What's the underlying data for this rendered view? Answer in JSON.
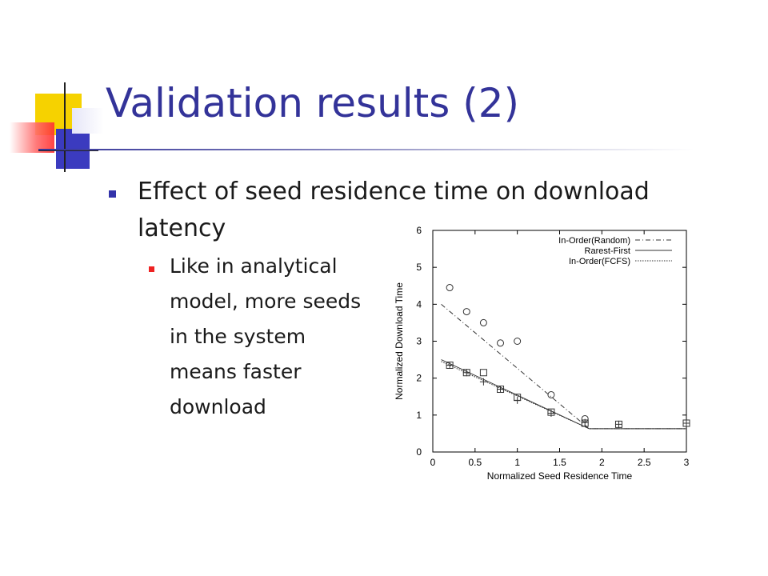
{
  "slide": {
    "title": "Validation results (2)",
    "bullet1": [
      "Effect of seed residence time on download",
      "latency"
    ],
    "sub_bullet": [
      "Like in analytical",
      "model, more seeds",
      "in the system",
      "means faster",
      "download"
    ]
  },
  "colors": {
    "title": "#333399",
    "bullet": "#3333aa",
    "sub_bullet": "#ee2222"
  },
  "chart_data": {
    "type": "line",
    "title": "",
    "xlabel": "Normalized Seed Residence Time",
    "ylabel": "Normalized Download Time",
    "xlim": [
      0,
      3
    ],
    "ylim": [
      0,
      6
    ],
    "xticks": [
      "0",
      "0.5",
      "1",
      "1.5",
      "2",
      "2.5",
      "3"
    ],
    "yticks": [
      "0",
      "1",
      "2",
      "3",
      "4",
      "5",
      "6"
    ],
    "legend_position": "top-right",
    "grid": false,
    "series": [
      {
        "name": "In-Order(Random)",
        "style": "dash-dot",
        "marker": "circle",
        "line": [
          [
            0.1,
            4.0
          ],
          [
            1.85,
            0.63
          ],
          [
            3.0,
            0.63
          ]
        ],
        "points": [
          [
            0.2,
            4.45
          ],
          [
            0.4,
            3.8
          ],
          [
            0.6,
            3.5
          ],
          [
            0.8,
            2.95
          ],
          [
            1.0,
            3.0
          ],
          [
            1.4,
            1.55
          ],
          [
            1.8,
            0.9
          ]
        ]
      },
      {
        "name": "Rarest-First",
        "style": "solid",
        "marker": "plus",
        "line": [
          [
            0.1,
            2.5
          ],
          [
            1.85,
            0.63
          ],
          [
            3.0,
            0.63
          ]
        ],
        "points": [
          [
            0.2,
            2.35
          ],
          [
            0.4,
            2.15
          ],
          [
            0.6,
            1.9
          ],
          [
            0.8,
            1.7
          ],
          [
            1.0,
            1.4
          ],
          [
            1.4,
            1.05
          ],
          [
            1.8,
            0.8
          ],
          [
            2.2,
            0.75
          ],
          [
            3.0,
            0.78
          ]
        ]
      },
      {
        "name": "In-Order(FCFS)",
        "style": "dotted",
        "marker": "square",
        "line": [
          [
            0.1,
            2.45
          ],
          [
            1.85,
            0.63
          ],
          [
            3.0,
            0.63
          ]
        ],
        "points": [
          [
            0.2,
            2.35
          ],
          [
            0.4,
            2.15
          ],
          [
            0.6,
            2.15
          ],
          [
            0.8,
            1.7
          ],
          [
            1.0,
            1.48
          ],
          [
            1.4,
            1.08
          ],
          [
            1.8,
            0.78
          ],
          [
            2.2,
            0.75
          ],
          [
            3.0,
            0.78
          ]
        ]
      }
    ]
  }
}
